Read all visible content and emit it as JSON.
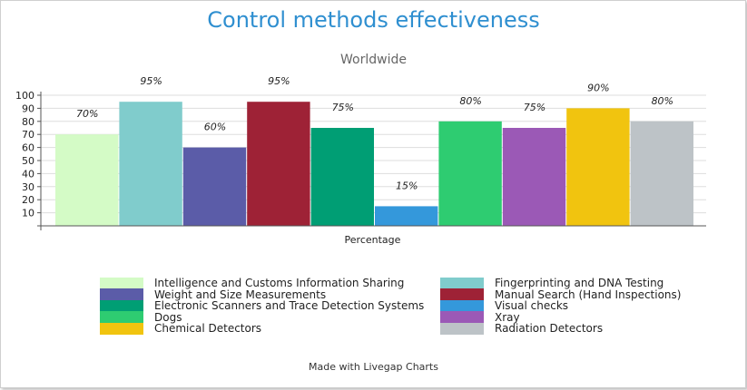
{
  "title": "Control methods effectiveness",
  "subtitle": "Worldwide",
  "footer": "Made with Livegap Charts",
  "chart_data": {
    "type": "bar",
    "title": "Control methods effectiveness",
    "subtitle": "Worldwide",
    "xlabel": "Percentage",
    "ylabel": "",
    "ylim": [
      0,
      100
    ],
    "yticks": [
      10,
      20,
      30,
      40,
      50,
      60,
      70,
      80,
      90,
      100
    ],
    "grid": true,
    "legend": "bottom",
    "series": [
      {
        "name": "Intelligence and Customs Information Sharing",
        "value": 70,
        "label": "70%",
        "color": "#d4fbc6"
      },
      {
        "name": "Fingerprinting and DNA Testing",
        "value": 95,
        "label": "95%",
        "color": "#80cccc"
      },
      {
        "name": "Weight and Size Measurements",
        "value": 60,
        "label": "60%",
        "color": "#5b5ca8"
      },
      {
        "name": "Manual Search (Hand Inspections)",
        "value": 95,
        "label": "95%",
        "color": "#9e2236"
      },
      {
        "name": "Electronic Scanners and Trace Detection Systems",
        "value": 75,
        "label": "75%",
        "color": "#009e74"
      },
      {
        "name": "Visual checks",
        "value": 15,
        "label": "15%",
        "color": "#3498db"
      },
      {
        "name": "Dogs",
        "value": 80,
        "label": "80%",
        "color": "#2ecc71"
      },
      {
        "name": "Xray",
        "value": 75,
        "label": "75%",
        "color": "#9b59b6"
      },
      {
        "name": "Chemical Detectors",
        "value": 90,
        "label": "90%",
        "color": "#f1c40f"
      },
      {
        "name": "Radiation Detectors",
        "value": 80,
        "label": "80%",
        "color": "#bdc3c7"
      }
    ]
  }
}
